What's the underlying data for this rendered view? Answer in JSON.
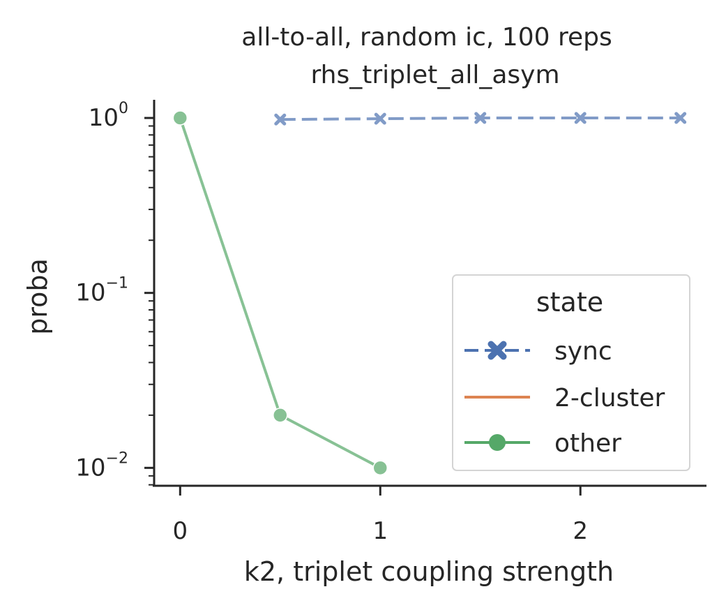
{
  "chart_data": {
    "type": "line",
    "title": "all-to-all, random ic, 100 reps",
    "subtitle": "rhs_triplet_all_asym",
    "xlabel": "k2, triplet coupling strength",
    "ylabel": "proba",
    "xlim": [
      -0.13,
      2.63
    ],
    "ylim": [
      0.0079,
      1.27
    ],
    "yscale": "log",
    "xticks": [
      "0",
      "1",
      "2"
    ],
    "yticks": [
      {
        "value": 1,
        "base": "10",
        "exp": "0"
      },
      {
        "value": 0.1,
        "base": "10",
        "exp": "−1"
      },
      {
        "value": 0.01,
        "base": "10",
        "exp": "−2"
      }
    ],
    "grid": false,
    "legend": {
      "title": "state",
      "position": "lower right"
    },
    "series": [
      {
        "name": "sync",
        "color": "#4c72b0",
        "marker": "x",
        "linestyle": "dashed",
        "x": [
          0.5,
          1.0,
          1.5,
          2.0,
          2.5
        ],
        "y": [
          0.98,
          0.99,
          1.0,
          1.0,
          1.0
        ]
      },
      {
        "name": "2-cluster",
        "color": "#dd8452",
        "marker": "none",
        "linestyle": "solid",
        "x": [],
        "y": []
      },
      {
        "name": "other",
        "color": "#55a868",
        "marker": "o",
        "linestyle": "solid",
        "x": [
          0.0,
          0.5,
          1.0
        ],
        "y": [
          1.0,
          0.02,
          0.01
        ]
      }
    ]
  }
}
